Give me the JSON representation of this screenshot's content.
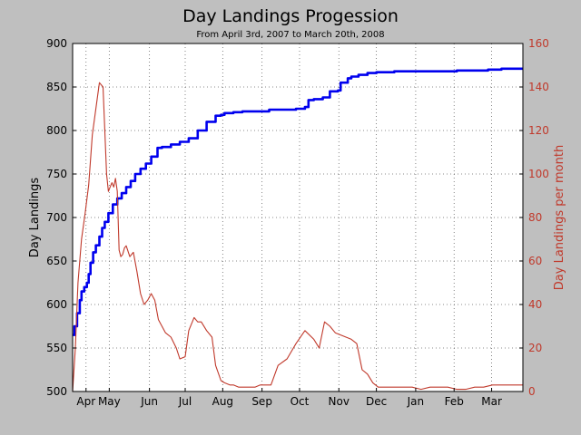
{
  "chart_data": {
    "type": "line",
    "title": "Day Landings Progession",
    "subtitle": "From April 3rd, 2007 to March 20th, 2008",
    "ylabel_left": "Day Landings",
    "ylabel_right": "Day Landings per month",
    "x_ticks": [
      "Apr",
      "May",
      "Jun",
      "Jul",
      "Aug",
      "Sep",
      "Oct",
      "Nov",
      "Dec",
      "Jan",
      "Feb",
      "Mar"
    ],
    "x_tick_pos": [
      15,
      41,
      86,
      126,
      168,
      212,
      254,
      298,
      340,
      384,
      427,
      469
    ],
    "ylim_left": [
      500,
      900
    ],
    "yticks_left": [
      500,
      550,
      600,
      650,
      700,
      750,
      800,
      850,
      900
    ],
    "ylim_right": [
      0,
      160
    ],
    "yticks_right": [
      0,
      20,
      40,
      60,
      80,
      100,
      120,
      140,
      160
    ],
    "xlim": [
      0,
      504
    ],
    "grid": true,
    "series": [
      {
        "name": "",
        "axis": "left",
        "color": "#0000ee",
        "x": [
          0,
          2,
          5,
          8,
          10,
          13,
          16,
          18,
          20,
          23,
          26,
          30,
          33,
          36,
          40,
          45,
          50,
          55,
          60,
          65,
          70,
          76,
          82,
          88,
          95,
          100,
          110,
          120,
          130,
          140,
          150,
          160,
          166,
          170,
          180,
          190,
          200,
          220,
          240,
          250,
          260,
          264,
          270,
          280,
          288,
          297,
          300,
          308,
          312,
          320,
          330,
          340,
          350,
          360,
          370,
          380,
          390,
          410,
          430,
          450,
          465,
          480,
          495,
          504
        ],
        "values": [
          565,
          575,
          590,
          605,
          615,
          620,
          625,
          635,
          648,
          660,
          668,
          678,
          688,
          695,
          705,
          715,
          722,
          728,
          735,
          742,
          750,
          756,
          762,
          770,
          780,
          781,
          784,
          787,
          791,
          800,
          810,
          817,
          818,
          820,
          821,
          822,
          822,
          824,
          824,
          825,
          827,
          835,
          836,
          838,
          845,
          846,
          855,
          860,
          862,
          864,
          866,
          867,
          867,
          868,
          868,
          868,
          868,
          868,
          869,
          869,
          870,
          871,
          871,
          871
        ]
      },
      {
        "name": "",
        "axis": "right",
        "color": "#c0392b",
        "x": [
          0,
          3,
          6,
          10,
          14,
          18,
          22,
          26,
          30,
          34,
          38,
          40,
          42,
          44,
          46,
          48,
          50,
          52,
          54,
          56,
          58,
          60,
          64,
          68,
          72,
          76,
          80,
          84,
          88,
          92,
          96,
          100,
          104,
          110,
          116,
          120,
          126,
          130,
          136,
          140,
          144,
          150,
          156,
          160,
          166,
          170,
          176,
          180,
          186,
          192,
          198,
          204,
          210,
          216,
          222,
          230,
          240,
          250,
          260,
          270,
          276,
          282,
          288,
          294,
          300,
          306,
          312,
          318,
          324,
          330,
          336,
          342,
          348,
          352,
          356,
          362,
          370,
          380,
          390,
          400,
          410,
          420,
          430,
          440,
          450,
          460,
          470,
          480,
          490,
          504
        ],
        "values": [
          0,
          20,
          50,
          70,
          82,
          95,
          118,
          130,
          142,
          140,
          100,
          92,
          94,
          96,
          94,
          98,
          92,
          65,
          62,
          63,
          66,
          67,
          62,
          64,
          55,
          45,
          40,
          42,
          45,
          42,
          33,
          30,
          27,
          25,
          20,
          15,
          16,
          28,
          34,
          32,
          32,
          28,
          25,
          12,
          5,
          4,
          3,
          3,
          2,
          2,
          2,
          2,
          3,
          3,
          3,
          12,
          15,
          22,
          28,
          24,
          20,
          32,
          30,
          27,
          26,
          25,
          24,
          22,
          10,
          8,
          4,
          2,
          2,
          2,
          2,
          2,
          2,
          2,
          1,
          2,
          2,
          2,
          1,
          1,
          2,
          2,
          3,
          3,
          3,
          3
        ]
      }
    ]
  }
}
